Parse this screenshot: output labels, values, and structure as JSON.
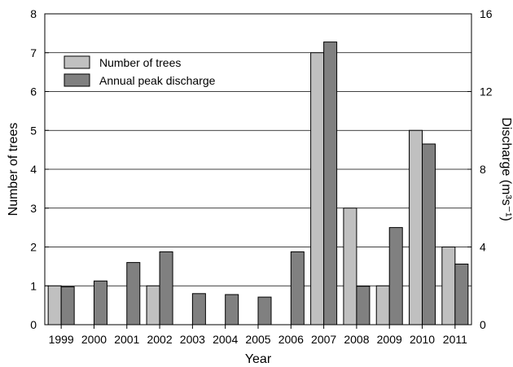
{
  "chart_data": {
    "type": "bar",
    "title": "",
    "xlabel": "Year",
    "ylabel_left": "Number of trees",
    "ylabel_right": "Discharge (m³s⁻¹)",
    "categories": [
      "1999",
      "2000",
      "2001",
      "2002",
      "2003",
      "2004",
      "2005",
      "2006",
      "2007",
      "2008",
      "2009",
      "2010",
      "2011"
    ],
    "series": [
      {
        "name": "Number of trees",
        "axis": "left",
        "color": "#c0c0c0",
        "values": [
          1,
          0,
          0,
          1,
          0,
          0,
          0,
          0,
          7,
          3,
          1,
          5,
          2
        ]
      },
      {
        "name": "Annual peak discharge",
        "axis": "right",
        "color": "#808080",
        "values": [
          1.95,
          2.25,
          3.2,
          3.75,
          1.6,
          1.55,
          1.42,
          3.75,
          14.55,
          1.98,
          5.0,
          9.3,
          3.12
        ]
      }
    ],
    "ylim_left": [
      0,
      8
    ],
    "yticks_left": [
      0,
      1,
      2,
      3,
      4,
      5,
      6,
      7,
      8
    ],
    "ylim_right": [
      0,
      16
    ],
    "yticks_right": [
      0,
      4,
      8,
      12,
      16
    ],
    "grid": "horizontal",
    "legend_position": "top-left"
  }
}
